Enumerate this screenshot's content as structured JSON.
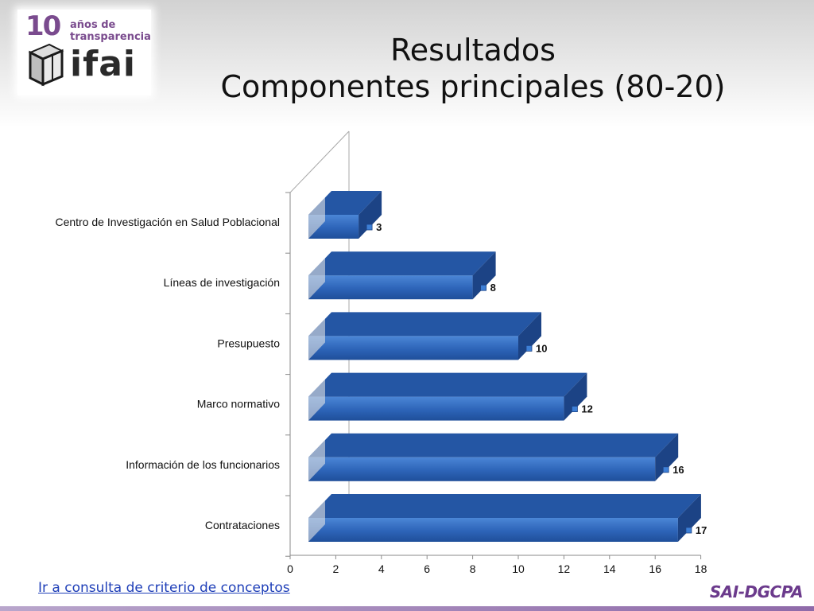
{
  "logo": {
    "number": "10",
    "line1": "años de",
    "line2": "transparencia",
    "word": "ifai"
  },
  "title": {
    "line1": "Resultados",
    "line2": "Componentes principales (80-20)"
  },
  "footer": {
    "link_text": "Ir a consulta de criterio de conceptos",
    "brand": "SAI-DGCPA"
  },
  "colors": {
    "bar_front": "#2d64b8",
    "bar_top": "#2456a4",
    "bar_side": "#1c4385",
    "brand": "#6b3a8c",
    "link": "#1f3fb8"
  },
  "chart_data": {
    "type": "bar",
    "orientation": "horizontal",
    "style": "3d",
    "categories": [
      "Centro de Investigación  en Salud Poblacional",
      "Líneas de investigación",
      "Presupuesto",
      "Marco normativo",
      "Información de los funcionarios",
      "Contrataciones"
    ],
    "values": [
      3,
      8,
      10,
      12,
      16,
      17
    ],
    "value_labels": [
      "3",
      "8",
      "10",
      "12",
      "16",
      "17"
    ],
    "xlim": [
      0,
      18
    ],
    "x_ticks": [
      "0",
      "2",
      "4",
      "6",
      "8",
      "10",
      "12",
      "14",
      "16",
      "18"
    ],
    "grid": false,
    "legend": "none"
  }
}
